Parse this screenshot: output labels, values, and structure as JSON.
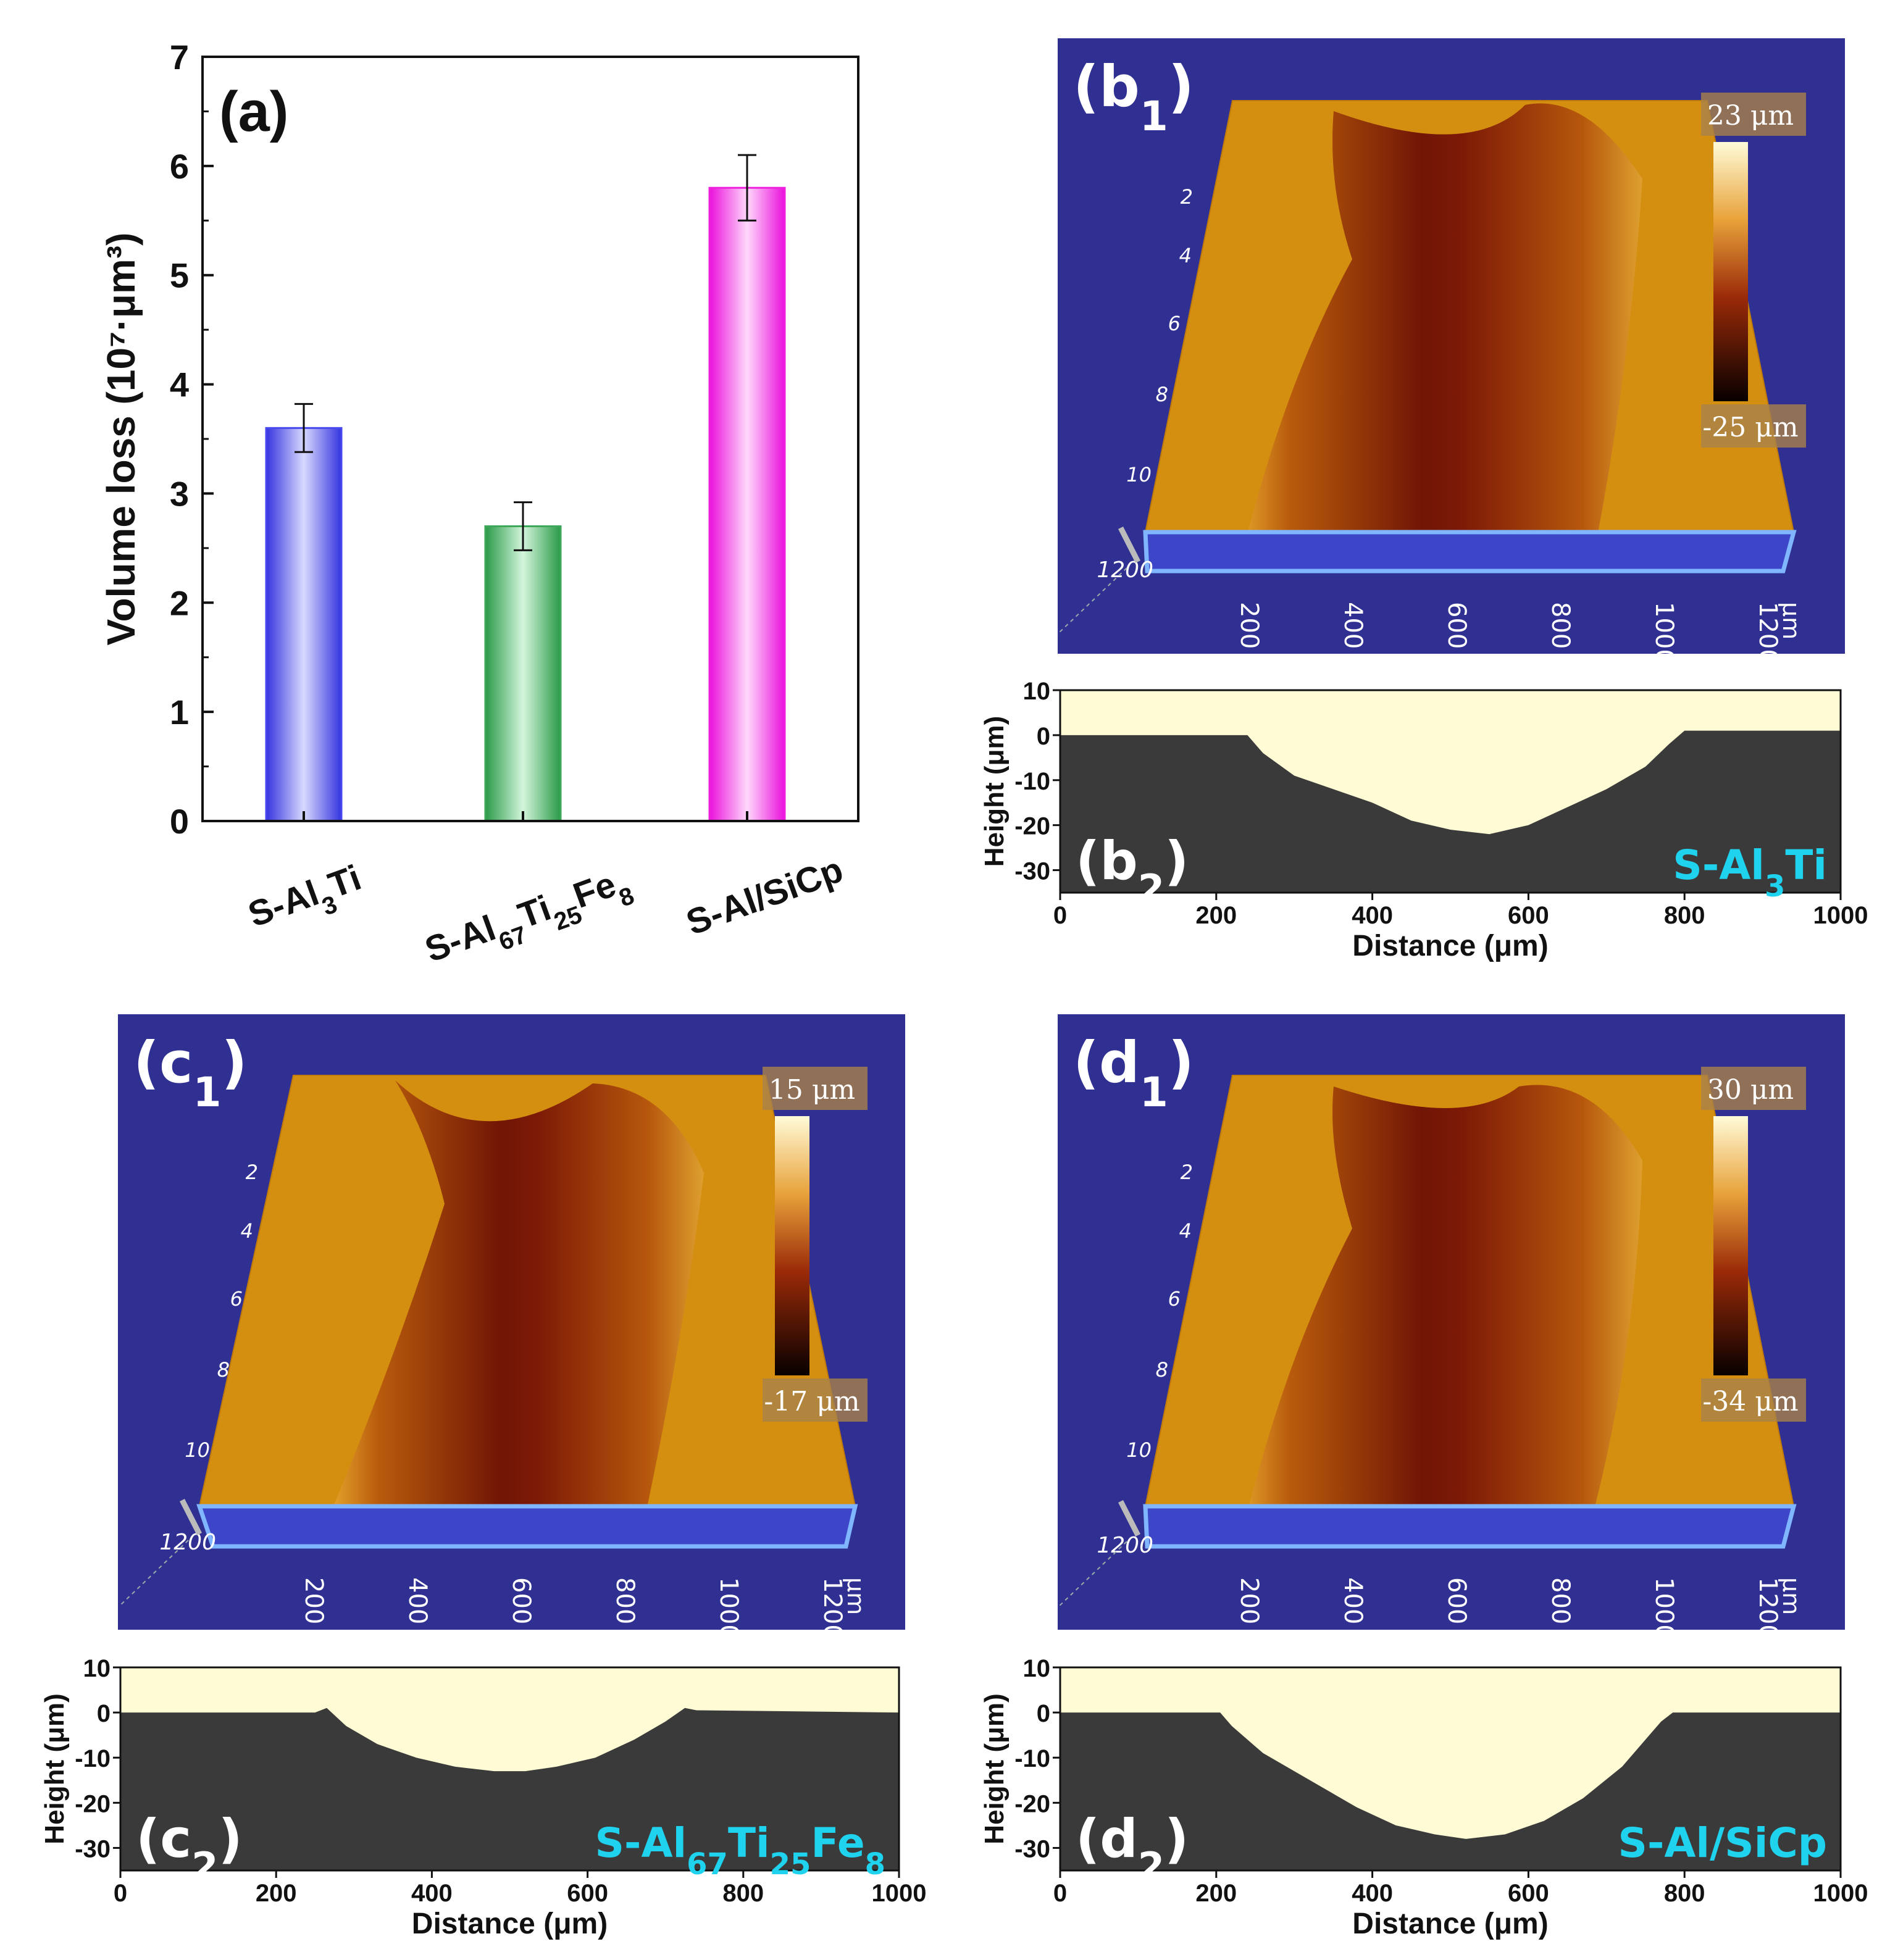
{
  "figure": {
    "description_labels": [
      "(a)",
      "(b1)",
      "(b2)",
      "(c1)",
      "(c2)",
      "(d1)",
      "(d2)"
    ]
  },
  "colors": {
    "bar_blue": "#4848ee",
    "bar_green": "#3ea85a",
    "bar_magenta": "#ee22dd",
    "map_bg": "#303092",
    "surface": "#d58f10",
    "wear_track": "#7a1606",
    "profile_dark": "#3a3a3a",
    "profile_light": "#fffbd4",
    "series_label": "#1fd3ee"
  },
  "chart_data": [
    {
      "id": "a",
      "type": "bar",
      "panel_label": "(a)",
      "categories": [
        "S-Al3Ti",
        "S-Al67Ti25Fe8",
        "S-Al/SiCp"
      ],
      "values": [
        3.6,
        2.7,
        5.8
      ],
      "errors": [
        0.22,
        0.22,
        0.3
      ],
      "ylabel": "Volume loss (10⁷·μm³)",
      "ylim": [
        0,
        7
      ],
      "yticks": [
        0,
        1,
        2,
        3,
        4,
        5,
        6,
        7
      ],
      "grid": false
    },
    {
      "id": "b1",
      "type": "heatmap",
      "panel_label": "(b1)",
      "colorbar": {
        "max": "23 μm",
        "min": "-25 μm"
      },
      "x_ticks": [
        "200",
        "400",
        "600",
        "800",
        "1000",
        "1200"
      ],
      "x_unit": "μm",
      "y_ticks": [
        "2",
        "4",
        "6",
        "8",
        "10",
        "1200"
      ]
    },
    {
      "id": "b2",
      "type": "area",
      "panel_label": "(b2)",
      "series_label": "S-Al3Ti",
      "xlabel": "Distance (μm)",
      "ylabel": "Height (μm)",
      "xlim": [
        0,
        1000
      ],
      "ylim": [
        -35,
        10
      ],
      "xticks": [
        0,
        200,
        400,
        600,
        800,
        1000
      ],
      "yticks": [
        10,
        0,
        -10,
        -20,
        -30
      ],
      "x": [
        0,
        240,
        260,
        300,
        350,
        400,
        450,
        500,
        550,
        600,
        650,
        700,
        750,
        780,
        800,
        1000
      ],
      "y": [
        0,
        0,
        -4,
        -9,
        -12,
        -15,
        -19,
        -21,
        -22,
        -20,
        -16,
        -12,
        -7,
        -2,
        1,
        1
      ]
    },
    {
      "id": "c1",
      "type": "heatmap",
      "panel_label": "(c1)",
      "colorbar": {
        "max": "15 μm",
        "min": "-17 μm"
      },
      "x_ticks": [
        "200",
        "400",
        "600",
        "800",
        "1000",
        "1200"
      ],
      "x_unit": "μm",
      "y_ticks": [
        "2",
        "4",
        "6",
        "8",
        "10",
        "1200"
      ]
    },
    {
      "id": "c2",
      "type": "area",
      "panel_label": "(c2)",
      "series_label": "S-Al67Ti25Fe8",
      "xlabel": "Distance (μm)",
      "ylabel": "Height (μm)",
      "xlim": [
        0,
        1000
      ],
      "ylim": [
        -35,
        10
      ],
      "xticks": [
        0,
        200,
        400,
        600,
        800,
        1000
      ],
      "yticks": [
        10,
        0,
        -10,
        -20,
        -30
      ],
      "x": [
        0,
        250,
        265,
        290,
        330,
        380,
        430,
        480,
        520,
        560,
        610,
        660,
        700,
        725,
        740,
        1000
      ],
      "y": [
        0,
        0,
        1,
        -3,
        -7,
        -10,
        -12,
        -13,
        -13,
        -12,
        -10,
        -6,
        -2,
        1,
        0.5,
        0
      ]
    },
    {
      "id": "d1",
      "type": "heatmap",
      "panel_label": "(d1)",
      "colorbar": {
        "max": "30 μm",
        "min": "-34 μm"
      },
      "x_ticks": [
        "200",
        "400",
        "600",
        "800",
        "1000",
        "1200"
      ],
      "x_unit": "μm",
      "y_ticks": [
        "2",
        "4",
        "6",
        "8",
        "10",
        "1200"
      ]
    },
    {
      "id": "d2",
      "type": "area",
      "panel_label": "(d2)",
      "series_label": "S-Al/SiCp",
      "xlabel": "Distance (μm)",
      "ylabel": "Height (μm)",
      "xlim": [
        0,
        1000
      ],
      "ylim": [
        -35,
        10
      ],
      "xticks": [
        0,
        200,
        400,
        600,
        800,
        1000
      ],
      "yticks": [
        10,
        0,
        -10,
        -20,
        -30
      ],
      "x": [
        0,
        205,
        220,
        260,
        320,
        380,
        430,
        480,
        520,
        570,
        620,
        670,
        720,
        770,
        785,
        1000
      ],
      "y": [
        0,
        0,
        -3,
        -9,
        -15,
        -21,
        -25,
        -27,
        -28,
        -27,
        -24,
        -19,
        -12,
        -2,
        0,
        0
      ]
    }
  ]
}
